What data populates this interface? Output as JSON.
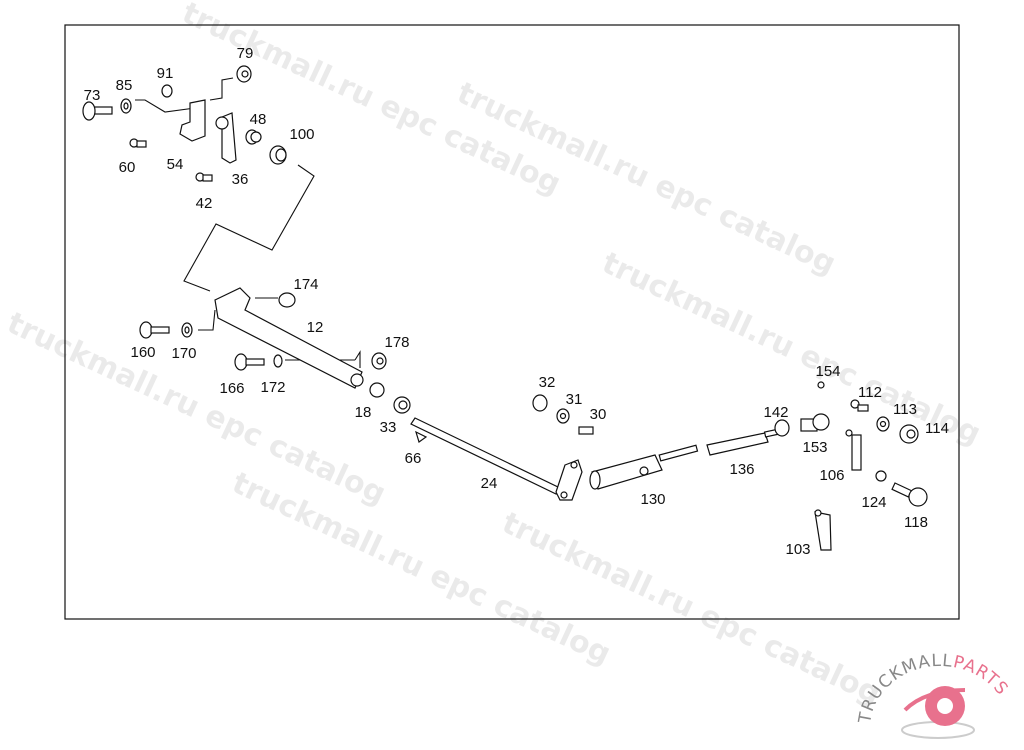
{
  "watermark": "truckmall.ru epc catalog",
  "logo": {
    "text_dark": "TRUCKMALL",
    "text_accent": "PARTS",
    "accent_color": "#e8718d",
    "gray_color": "#888888"
  },
  "parts": [
    "73",
    "85",
    "91",
    "79",
    "48",
    "100",
    "60",
    "54",
    "36",
    "42",
    "174",
    "12",
    "160",
    "170",
    "178",
    "166",
    "172",
    "18",
    "33",
    "66",
    "32",
    "31",
    "30",
    "24",
    "130",
    "136",
    "142",
    "154",
    "153",
    "112",
    "113",
    "114",
    "106",
    "124",
    "118",
    "103"
  ]
}
